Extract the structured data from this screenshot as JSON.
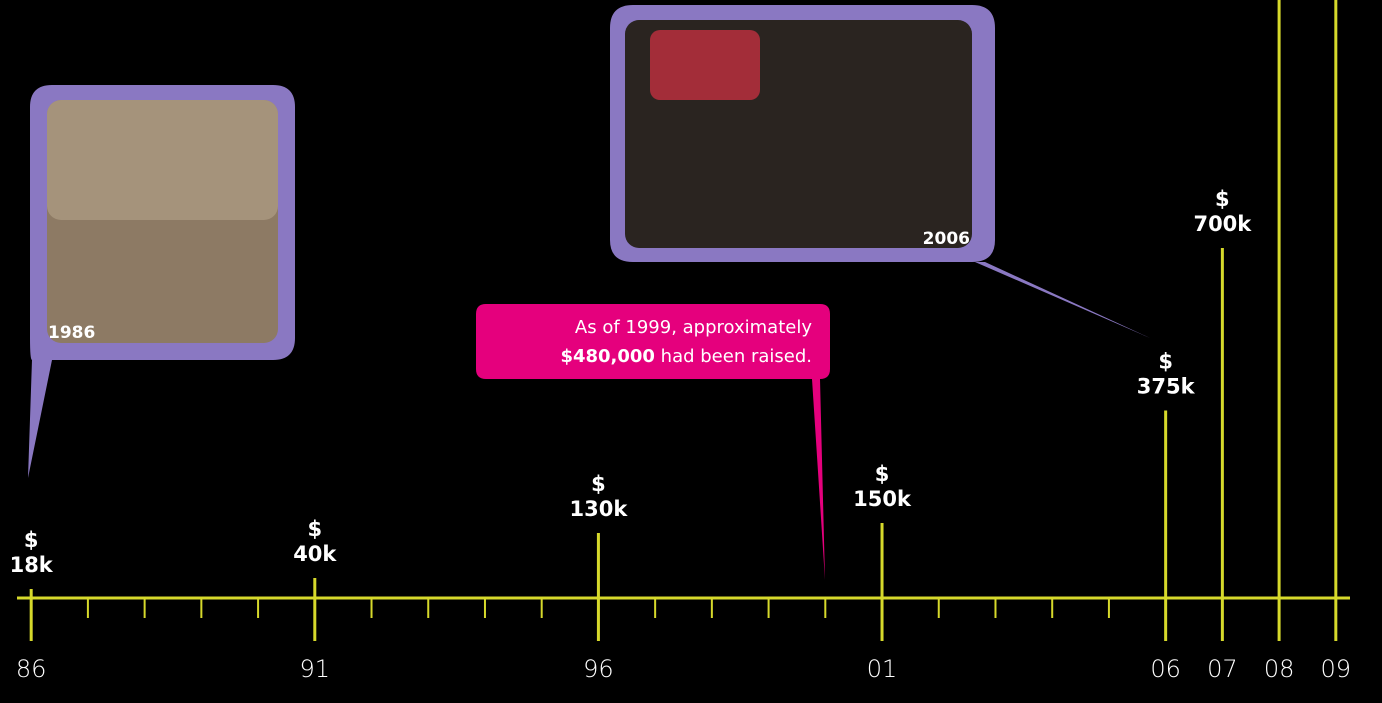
{
  "chart_data": {
    "type": "bar",
    "x": [
      1986,
      1991,
      1996,
      2001,
      2006,
      2007,
      2008,
      2009
    ],
    "values": [
      18,
      40,
      130,
      150,
      375,
      700,
      null,
      null
    ],
    "value_labels": [
      [
        "$",
        "18k"
      ],
      [
        "$",
        "40k"
      ],
      [
        "$",
        "130k"
      ],
      [
        "$",
        "150k"
      ],
      [
        "$",
        "375k"
      ],
      [
        "$",
        "700k"
      ],
      null,
      null
    ],
    "color": "#d6d92b",
    "xlim": [
      1985.75,
      2009.25
    ],
    "ylim": [
      0,
      1196
    ],
    "xticks": [
      {
        "value": 1986,
        "label": "86"
      },
      {
        "value": 1991,
        "label": "91"
      },
      {
        "value": 1996,
        "label": "96"
      },
      {
        "value": 2001,
        "label": "01"
      },
      {
        "value": 2006,
        "label": "06"
      },
      {
        "value": 2007,
        "label": "07"
      },
      {
        "value": 2008,
        "label": "08"
      },
      {
        "value": 2009,
        "label": "09"
      }
    ],
    "minor_xticks": [
      1987,
      1988,
      1989,
      1990,
      1992,
      1993,
      1994,
      1995,
      1997,
      1998,
      1999,
      2000,
      2002,
      2003,
      2004,
      2005
    ],
    "annotations": {
      "photo_1986": "1986",
      "photo_2006": "2006",
      "note_line1": "As of 1999, approximately",
      "note_amount": "$480,000",
      "note_rest": " had been raised."
    }
  }
}
